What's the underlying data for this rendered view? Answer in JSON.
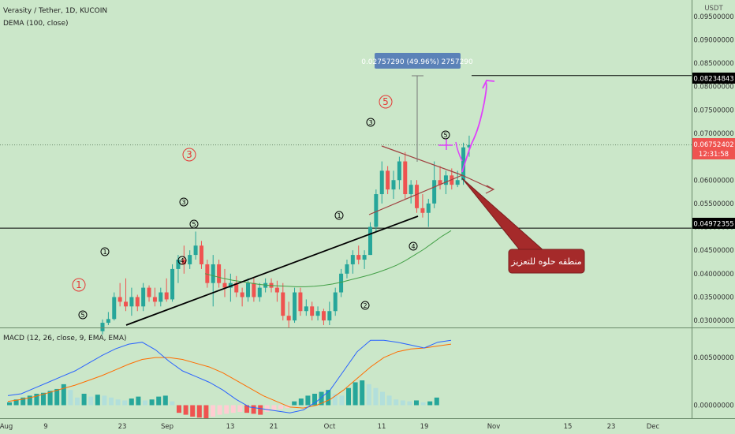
{
  "header": {
    "symbol_line": "Verasity / Tether, 1D, KUCOIN",
    "indicator": "DEMA (100, close)"
  },
  "macd": {
    "label": "MACD (12, 26, close, 9, EMA, EMA)"
  },
  "price_axis": {
    "unit": "USDT",
    "ticks": [
      "0.09500000",
      "0.09000000",
      "0.08500000",
      "0.08000000",
      "0.07500000",
      "0.07000000",
      "0.06500000",
      "0.06000000",
      "0.05500000",
      "0.05000000",
      "0.04500000",
      "0.04000000",
      "0.03500000",
      "0.03000000"
    ],
    "macd_ticks": [
      "0.00500000",
      "0.00000000"
    ]
  },
  "time_axis": {
    "ticks": [
      "Aug",
      "9",
      "23",
      "Sep",
      "13",
      "21",
      "Oct",
      "11",
      "19",
      "Nov",
      "15",
      "23",
      "Dec"
    ]
  },
  "badges": {
    "target": "0.08234843",
    "current": "0.06752402",
    "countdown": "12:31:58",
    "support": "0.04972355"
  },
  "measure_label": "0.02757290 (49.96%) 2757290",
  "callout": "منطقه حلوه للتعزيز",
  "wave_labels": {
    "big": [
      "1",
      "3",
      "5"
    ],
    "small": [
      "5",
      "1",
      "3",
      "5",
      "4",
      "2",
      "1",
      "4",
      "3",
      "5"
    ]
  },
  "colors": {
    "background": "#cbe7c9",
    "up": "#26a69a",
    "down": "#ef5350",
    "dema": "#43a047",
    "macd": "#2962ff",
    "signal": "#ff6d00",
    "callout": "#a52a2a",
    "arrow": "#e040fb"
  },
  "chart_data": {
    "type": "candlestick",
    "title": "Verasity / Tether, 1D, KUCOIN",
    "ylim": [
      0.0285,
      0.0985
    ],
    "candles": [
      [
        0.0277,
        0.0302,
        0.027,
        0.0295
      ],
      [
        0.0295,
        0.0318,
        0.029,
        0.0303
      ],
      [
        0.0303,
        0.036,
        0.03,
        0.035
      ],
      [
        0.035,
        0.038,
        0.033,
        0.034
      ],
      [
        0.034,
        0.039,
        0.032,
        0.033
      ],
      [
        0.033,
        0.037,
        0.031,
        0.035
      ],
      [
        0.035,
        0.0355,
        0.032,
        0.033
      ],
      [
        0.033,
        0.038,
        0.032,
        0.037
      ],
      [
        0.037,
        0.0375,
        0.034,
        0.035
      ],
      [
        0.035,
        0.037,
        0.033,
        0.034
      ],
      [
        0.034,
        0.037,
        0.033,
        0.036
      ],
      [
        0.036,
        0.039,
        0.034,
        0.0345
      ],
      [
        0.0345,
        0.042,
        0.034,
        0.041
      ],
      [
        0.041,
        0.044,
        0.038,
        0.043
      ],
      [
        0.043,
        0.046,
        0.04,
        0.042
      ],
      [
        0.042,
        0.045,
        0.041,
        0.044
      ],
      [
        0.044,
        0.049,
        0.043,
        0.046
      ],
      [
        0.046,
        0.047,
        0.041,
        0.042
      ],
      [
        0.042,
        0.043,
        0.037,
        0.038
      ],
      [
        0.038,
        0.044,
        0.033,
        0.042
      ],
      [
        0.042,
        0.043,
        0.037,
        0.038
      ],
      [
        0.038,
        0.041,
        0.035,
        0.037
      ],
      [
        0.037,
        0.04,
        0.034,
        0.038
      ],
      [
        0.038,
        0.0395,
        0.035,
        0.036
      ],
      [
        0.036,
        0.037,
        0.033,
        0.035
      ],
      [
        0.035,
        0.039,
        0.034,
        0.038
      ],
      [
        0.038,
        0.039,
        0.034,
        0.035
      ],
      [
        0.035,
        0.038,
        0.034,
        0.037
      ],
      [
        0.037,
        0.039,
        0.036,
        0.038
      ],
      [
        0.038,
        0.039,
        0.036,
        0.037
      ],
      [
        0.037,
        0.0385,
        0.034,
        0.036
      ],
      [
        0.036,
        0.038,
        0.03,
        0.031
      ],
      [
        0.031,
        0.034,
        0.0285,
        0.03
      ],
      [
        0.03,
        0.037,
        0.0295,
        0.036
      ],
      [
        0.036,
        0.037,
        0.031,
        0.032
      ],
      [
        0.032,
        0.0345,
        0.031,
        0.033
      ],
      [
        0.033,
        0.034,
        0.03,
        0.031
      ],
      [
        0.031,
        0.033,
        0.03,
        0.032
      ],
      [
        0.032,
        0.0325,
        0.029,
        0.03
      ],
      [
        0.03,
        0.034,
        0.029,
        0.032
      ],
      [
        0.032,
        0.037,
        0.031,
        0.036
      ],
      [
        0.036,
        0.041,
        0.035,
        0.04
      ],
      [
        0.04,
        0.043,
        0.039,
        0.042
      ],
      [
        0.042,
        0.045,
        0.04,
        0.044
      ],
      [
        0.044,
        0.046,
        0.042,
        0.043
      ],
      [
        0.043,
        0.045,
        0.041,
        0.044
      ],
      [
        0.044,
        0.051,
        0.044,
        0.05
      ],
      [
        0.05,
        0.058,
        0.049,
        0.057
      ],
      [
        0.057,
        0.064,
        0.055,
        0.062
      ],
      [
        0.062,
        0.063,
        0.057,
        0.058
      ],
      [
        0.058,
        0.062,
        0.056,
        0.06
      ],
      [
        0.06,
        0.065,
        0.058,
        0.064
      ],
      [
        0.064,
        0.066,
        0.056,
        0.057
      ],
      [
        0.057,
        0.06,
        0.055,
        0.059
      ],
      [
        0.059,
        0.06,
        0.053,
        0.054
      ],
      [
        0.054,
        0.057,
        0.052,
        0.053
      ],
      [
        0.053,
        0.056,
        0.05,
        0.055
      ],
      [
        0.055,
        0.064,
        0.054,
        0.06
      ],
      [
        0.06,
        0.063,
        0.058,
        0.059
      ],
      [
        0.059,
        0.062,
        0.057,
        0.061
      ],
      [
        0.061,
        0.0625,
        0.058,
        0.059
      ],
      [
        0.059,
        0.062,
        0.0585,
        0.06
      ],
      [
        0.06,
        0.068,
        0.059,
        0.067
      ],
      [
        0.067,
        0.0695,
        0.065,
        0.0675
      ]
    ],
    "dema": [
      0.04,
      0.0395,
      0.039,
      0.0386,
      0.0383,
      0.038,
      0.0377,
      0.0375,
      0.0374,
      0.0373,
      0.0372,
      0.0372,
      0.0373,
      0.0375,
      0.0378,
      0.0382,
      0.0387,
      0.0392,
      0.0397,
      0.0403,
      0.041,
      0.0418,
      0.0428,
      0.044,
      0.0452,
      0.0466,
      0.048,
      0.0492
    ],
    "macd_ylim": [
      -0.0012,
      0.0079
    ],
    "macd_line": [
      0.001,
      0.0012,
      0.0018,
      0.0024,
      0.003,
      0.0036,
      0.0044,
      0.0052,
      0.0059,
      0.0064,
      0.0066,
      0.0058,
      0.0046,
      0.0036,
      0.003,
      0.0024,
      0.0016,
      0.0006,
      -0.0002,
      -0.0004,
      -0.0006,
      -0.0008,
      -0.0005,
      0.0004,
      0.0016,
      0.0036,
      0.0056,
      0.0068,
      0.0068,
      0.0066,
      0.0063,
      0.006,
      0.0066,
      0.0068
    ],
    "signal_line": [
      0.0004,
      0.0006,
      0.0009,
      0.0013,
      0.0017,
      0.0021,
      0.0026,
      0.0031,
      0.0037,
      0.0043,
      0.0048,
      0.005,
      0.005,
      0.0048,
      0.0044,
      0.004,
      0.0034,
      0.0026,
      0.0018,
      0.001,
      0.0004,
      -0.0002,
      -0.0003,
      0.0,
      0.0006,
      0.0016,
      0.0028,
      0.004,
      0.005,
      0.0056,
      0.0059,
      0.006,
      0.0062,
      0.0064
    ],
    "histogram": [
      0.0003,
      0.0006,
      0.0008,
      0.001,
      0.0012,
      0.0013,
      0.0015,
      0.0017,
      0.0022,
      0.0016,
      0.0008,
      0.0012,
      0.0009,
      0.0011,
      0.001,
      0.0008,
      0.0006,
      0.0005,
      0.0007,
      0.0009,
      0.0005,
      0.0006,
      0.0009,
      0.001,
      0.0004,
      -0.0008,
      -0.001,
      -0.0012,
      -0.0013,
      -0.0014,
      -0.0012,
      -0.001,
      -0.0009,
      -0.0008,
      -0.0007,
      -0.0008,
      -0.0009,
      -0.001,
      -0.0007,
      -0.0005,
      -0.0004,
      -0.0003,
      0.0004,
      0.0007,
      0.001,
      0.0012,
      0.0014,
      0.0016,
      0.0012,
      0.001,
      0.0018,
      0.0024,
      0.0026,
      0.0022,
      0.0018,
      0.0014,
      0.001,
      0.0006,
      0.0005,
      0.0004,
      0.0005,
      0.0003,
      0.0004,
      0.0008
    ]
  }
}
